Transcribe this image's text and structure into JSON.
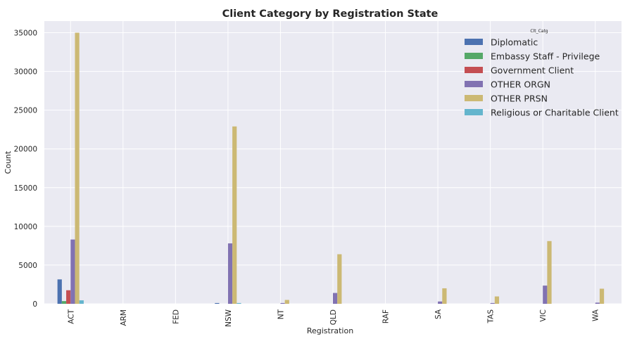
{
  "chart_data": {
    "type": "bar",
    "title": "Client Category by Registration State",
    "xlabel": "Registration",
    "ylabel": "Count",
    "ylim": [
      0,
      36500
    ],
    "yticks": [
      0,
      5000,
      10000,
      15000,
      20000,
      25000,
      30000,
      35000
    ],
    "categories": [
      "ACT",
      "ARM",
      "FED",
      "NSW",
      "NT",
      "QLD",
      "RAF",
      "SA",
      "TAS",
      "VIC",
      "WA"
    ],
    "legend_title": "Clt_Catg",
    "legend_position": "top-right",
    "grid": true,
    "series": [
      {
        "name": "Diplomatic",
        "color": "#4c72b0",
        "values": [
          3150,
          0,
          0,
          100,
          0,
          0,
          0,
          0,
          0,
          0,
          0
        ]
      },
      {
        "name": "Embassy Staff - Privilege",
        "color": "#55a868",
        "values": [
          350,
          0,
          0,
          0,
          0,
          0,
          0,
          0,
          0,
          0,
          0
        ]
      },
      {
        "name": "Government Client",
        "color": "#c44e52",
        "values": [
          1750,
          0,
          0,
          0,
          0,
          0,
          0,
          0,
          0,
          0,
          0
        ]
      },
      {
        "name": "OTHER ORGN",
        "color": "#8172b2",
        "values": [
          8300,
          0,
          0,
          7800,
          100,
          1400,
          0,
          300,
          100,
          2350,
          150
        ]
      },
      {
        "name": "OTHER PRSN",
        "color": "#ccb974",
        "values": [
          35000,
          0,
          0,
          22900,
          500,
          6400,
          0,
          2000,
          950,
          8100,
          1950
        ]
      },
      {
        "name": "Religious or Charitable Client",
        "color": "#64b5cd",
        "values": [
          450,
          0,
          0,
          100,
          0,
          0,
          0,
          0,
          0,
          0,
          0
        ]
      }
    ]
  }
}
